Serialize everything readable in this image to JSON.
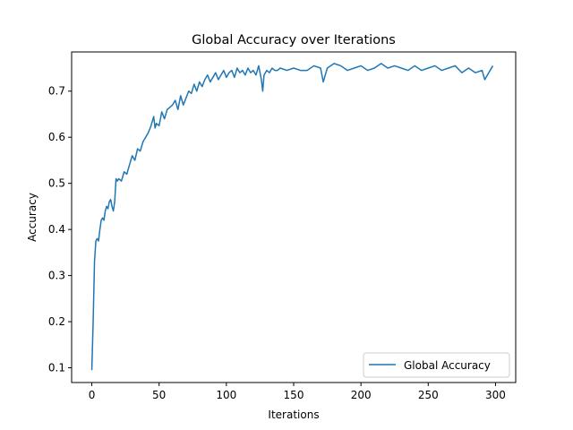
{
  "chart_data": {
    "type": "line",
    "title": "Global Accuracy over Iterations",
    "xlabel": "Iterations",
    "ylabel": "Accuracy",
    "xlim": [
      -15,
      315
    ],
    "ylim": [
      0.068,
      0.785
    ],
    "xticks": [
      0,
      50,
      100,
      150,
      200,
      250,
      300
    ],
    "yticks": [
      0.1,
      0.2,
      0.3,
      0.4,
      0.5,
      0.6,
      0.7
    ],
    "grid": false,
    "legend_position": "lower-right",
    "line_color": "#1f77b4",
    "series": [
      {
        "name": "Global Accuracy",
        "x": [
          0,
          1,
          2,
          3,
          4,
          5,
          6,
          7,
          8,
          9,
          10,
          11,
          12,
          13,
          14,
          15,
          16,
          17,
          18,
          19,
          20,
          22,
          24,
          26,
          28,
          30,
          32,
          34,
          36,
          38,
          40,
          42,
          44,
          46,
          47,
          48,
          50,
          52,
          54,
          56,
          58,
          60,
          62,
          64,
          66,
          68,
          70,
          72,
          74,
          76,
          78,
          80,
          82,
          84,
          86,
          88,
          90,
          92,
          94,
          96,
          98,
          100,
          102,
          104,
          106,
          108,
          110,
          112,
          114,
          116,
          118,
          120,
          122,
          124,
          126,
          127,
          128,
          130,
          132,
          134,
          136,
          138,
          140,
          145,
          150,
          155,
          160,
          165,
          170,
          172,
          175,
          180,
          185,
          190,
          195,
          200,
          205,
          210,
          215,
          220,
          225,
          230,
          235,
          240,
          245,
          250,
          255,
          260,
          265,
          270,
          275,
          280,
          285,
          290,
          292,
          295,
          298
        ],
        "y": [
          0.095,
          0.2,
          0.33,
          0.375,
          0.38,
          0.375,
          0.4,
          0.42,
          0.425,
          0.42,
          0.44,
          0.45,
          0.445,
          0.46,
          0.465,
          0.45,
          0.44,
          0.46,
          0.51,
          0.505,
          0.51,
          0.505,
          0.525,
          0.52,
          0.54,
          0.56,
          0.55,
          0.575,
          0.57,
          0.59,
          0.6,
          0.61,
          0.625,
          0.645,
          0.62,
          0.63,
          0.625,
          0.655,
          0.64,
          0.66,
          0.665,
          0.67,
          0.68,
          0.66,
          0.69,
          0.67,
          0.685,
          0.7,
          0.695,
          0.715,
          0.7,
          0.72,
          0.71,
          0.725,
          0.735,
          0.72,
          0.73,
          0.74,
          0.725,
          0.735,
          0.745,
          0.73,
          0.74,
          0.745,
          0.73,
          0.75,
          0.74,
          0.745,
          0.735,
          0.75,
          0.74,
          0.745,
          0.735,
          0.755,
          0.725,
          0.7,
          0.735,
          0.745,
          0.74,
          0.75,
          0.745,
          0.745,
          0.75,
          0.745,
          0.75,
          0.745,
          0.745,
          0.755,
          0.75,
          0.72,
          0.75,
          0.76,
          0.755,
          0.745,
          0.75,
          0.755,
          0.745,
          0.75,
          0.76,
          0.75,
          0.755,
          0.75,
          0.745,
          0.755,
          0.745,
          0.75,
          0.755,
          0.745,
          0.75,
          0.755,
          0.74,
          0.75,
          0.74,
          0.745,
          0.725,
          0.74,
          0.755
        ]
      }
    ]
  }
}
